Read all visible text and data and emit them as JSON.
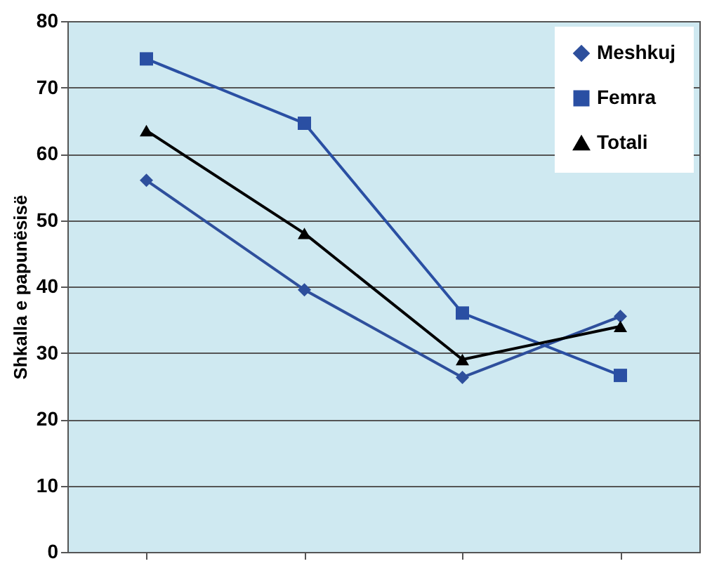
{
  "chart_data": {
    "type": "line",
    "ylabel": "Shkalla e papunësisë",
    "categories": [
      null,
      null,
      null,
      null
    ],
    "series": [
      {
        "name": "Meshkuj",
        "color": "#2e4f9c",
        "marker": "diamond",
        "values": [
          56,
          39.5,
          26.3,
          35.5
        ]
      },
      {
        "name": "Femra",
        "color": "#2a4fa3",
        "marker": "square",
        "values": [
          74.3,
          64.6,
          36,
          26.6
        ]
      },
      {
        "name": "Totali",
        "color": "#000000",
        "marker": "triangle",
        "values": [
          63.5,
          48,
          29,
          34
        ]
      }
    ],
    "ylim": [
      0,
      80
    ],
    "yticks": [
      0,
      10,
      20,
      30,
      40,
      50,
      60,
      70,
      80
    ],
    "grid": "y",
    "legend": "top right",
    "tick_labels": "y"
  }
}
